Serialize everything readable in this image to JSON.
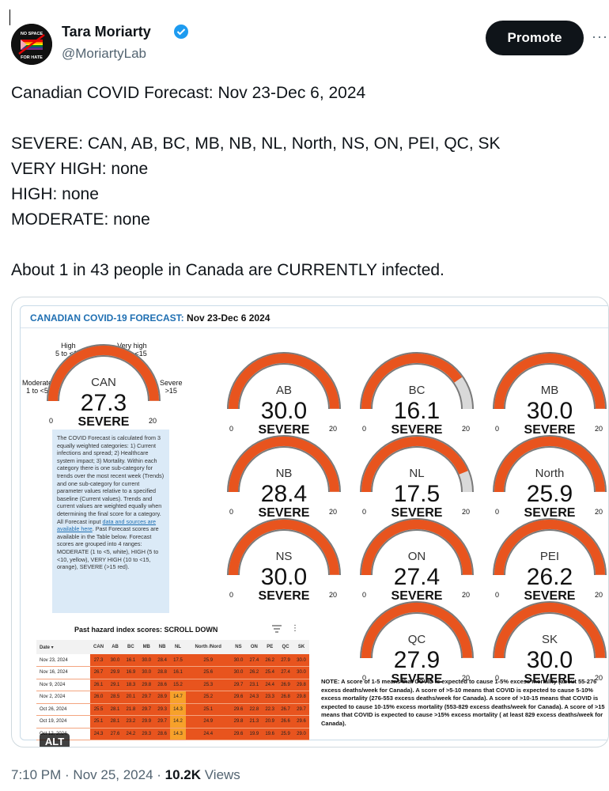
{
  "user": {
    "name": "Tara Moriarty",
    "handle": "@MoriartyLab",
    "avatar_top_text": "NO SPACE",
    "avatar_bottom_text": "FOR HATE"
  },
  "actions": {
    "promote_label": "Promote",
    "more_label": "···"
  },
  "tweet_lines": [
    "Canadian COVID Forecast: Nov 23-Dec 6, 2024",
    "",
    "SEVERE: CAN, AB, BC, MB, NB, NL, North, NS, ON, PEI, QC, SK",
    "VERY HIGH: none",
    "HIGH: none",
    "MODERATE: none",
    "",
    "About 1 in 43 people in Canada are CURRENTLY infected."
  ],
  "forecast": {
    "title_prefix": "CANADIAN COVID-19 FORECAST:",
    "title_dates": "Nov 23-Dec 6 2024",
    "can_labels": {
      "moderate": "Moderate",
      "moderate_range": "1 to <5",
      "high": "High",
      "high_range": "5 to <10",
      "very_high": "Very high",
      "very_high_range": "10 to <15",
      "severe": "Severe",
      "severe_range": ">15"
    },
    "gauges": [
      {
        "name": "CAN",
        "value": "27.3",
        "level": "SEVERE",
        "fraction": 1.0,
        "min": "0",
        "max": "20"
      },
      {
        "name": "AB",
        "value": "30.0",
        "level": "SEVERE",
        "fraction": 1.0,
        "min": "0",
        "max": "20"
      },
      {
        "name": "BC",
        "value": "16.1",
        "level": "SEVERE",
        "fraction": 0.805,
        "min": "0",
        "max": "20"
      },
      {
        "name": "MB",
        "value": "30.0",
        "level": "SEVERE",
        "fraction": 1.0,
        "min": "0",
        "max": "20"
      },
      {
        "name": "NB",
        "value": "28.4",
        "level": "SEVERE",
        "fraction": 1.0,
        "min": "0",
        "max": "20"
      },
      {
        "name": "NL",
        "value": "17.5",
        "level": "SEVERE",
        "fraction": 0.875,
        "min": "0",
        "max": "20"
      },
      {
        "name": "North",
        "value": "25.9",
        "level": "SEVERE",
        "fraction": 1.0,
        "min": "0",
        "max": "20"
      },
      {
        "name": "NS",
        "value": "30.0",
        "level": "SEVERE",
        "fraction": 1.0,
        "min": "0",
        "max": "20"
      },
      {
        "name": "ON",
        "value": "27.4",
        "level": "SEVERE",
        "fraction": 1.0,
        "min": "0",
        "max": "20"
      },
      {
        "name": "PEI",
        "value": "26.2",
        "level": "SEVERE",
        "fraction": 1.0,
        "min": "0",
        "max": "20"
      },
      {
        "name": "QC",
        "value": "27.9",
        "level": "SEVERE",
        "fraction": 1.0,
        "min": "0",
        "max": "20"
      },
      {
        "name": "SK",
        "value": "30.0",
        "level": "SEVERE",
        "fraction": 1.0,
        "min": "0",
        "max": "20"
      }
    ],
    "info_text_1": "The COVID Forecast is calculated from 3 equally weighted categories: 1) Current infections and spread; 2) Healthcare system impact; 3) Mortality. Within each category there is one sub-category for trends over the most recent week (Trends) and one sub-category for current parameter values relative to a specified baseline (Current values). Trends and current values are weighted equally when determining the final score for a category. All Forecast input ",
    "info_link": "data and sources are available here",
    "info_text_2": ". Past Forecast scores are available in the Table below. Forecast scores are grouped into 4 ranges: MODERATE (1 to <5, white), HIGH (5 to <10, yellow), VERY HIGH (10 to <15, orange), SEVERE (>15 red).",
    "table_title": "Past hazard index scores: SCROLL DOWN",
    "table_headers": [
      "Date",
      "CAN",
      "AB",
      "BC",
      "MB",
      "NB",
      "NL",
      "North /Nord",
      "NS",
      "ON",
      "PE",
      "QC",
      "SK"
    ],
    "table_rows": [
      [
        "Nov 23, 2024",
        "27.3",
        "30.0",
        "16.1",
        "30.0",
        "28.4",
        "17.5",
        "25.9",
        "30.0",
        "27.4",
        "26.2",
        "27.9",
        "30.0"
      ],
      [
        "Nov 16, 2024",
        "26.7",
        "29.9",
        "16.9",
        "30.0",
        "28.8",
        "16.1",
        "25.6",
        "30.0",
        "26.2",
        "25.4",
        "27.4",
        "30.0"
      ],
      [
        "Nov 9, 2024",
        "26.1",
        "29.1",
        "18.3",
        "29.8",
        "28.6",
        "15.2",
        "25.3",
        "29.7",
        "23.1",
        "24.4",
        "26.9",
        "29.8"
      ],
      [
        "Nov 2, 2024",
        "26.0",
        "28.5",
        "20.1",
        "29.7",
        "28.9",
        "14.7",
        "25.2",
        "29.6",
        "24.3",
        "23.3",
        "26.8",
        "29.8"
      ],
      [
        "Oct 26, 2024",
        "25.5",
        "28.1",
        "21.8",
        "29.7",
        "29.3",
        "14.3",
        "25.1",
        "29.6",
        "22.8",
        "22.3",
        "26.7",
        "29.7"
      ],
      [
        "Oct 19, 2024",
        "25.1",
        "28.1",
        "23.2",
        "29.9",
        "29.7",
        "14.2",
        "24.9",
        "29.8",
        "21.3",
        "20.9",
        "26.6",
        "29.6"
      ],
      [
        "Oct 12, 2024",
        "24.3",
        "27.6",
        "24.2",
        "29.3",
        "28.6",
        "14.3",
        "24.4",
        "29.6",
        "19.9",
        "19.6",
        "25.9",
        "29.0"
      ]
    ],
    "alt_label": "ALT",
    "note": "NOTE: A score of 1-5 means that COVID is expected to cause 1-5% excess mortality (about 55-276 excess deaths/week for Canada). A score of >5-10 means that COVID is expected to cause 5-10% excess mortality (276-553 excess deaths/week for Canada). A score of >10-15 means that COVID is expected to cause 10-15% excess mortality (553-829 excess deaths/week for Canada). A score of >15 means that COVID is expected to cause >15% excess mortality ( at least 829 excess deaths/week for Canada).",
    "colors": {
      "severe": "#e8541e",
      "track": "#d9d9d9",
      "outline": "#7a7a7a",
      "high": "#f7a12a"
    }
  },
  "footer": {
    "time": "7:10 PM",
    "sep1": " · ",
    "date": "Nov 25, 2024",
    "sep2": " · ",
    "views_count": "10.2K",
    "views_label": " Views"
  }
}
